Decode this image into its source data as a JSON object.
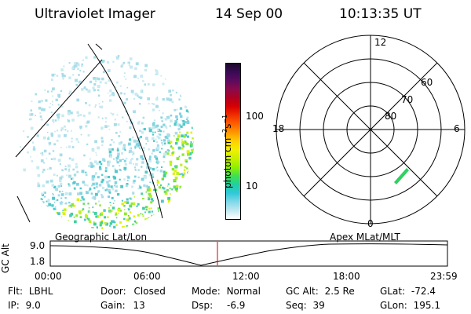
{
  "header": {
    "title": "Ultraviolet Imager",
    "date": "14 Sep 00",
    "time": "10:13:35 UT"
  },
  "colorbar": {
    "unit": "photon cm^-2 s^-1",
    "ticks": [
      "100",
      "10"
    ],
    "colors": [
      "#1a0a2a",
      "#3a0a55",
      "#5e0a5e",
      "#8a0a4a",
      "#b00020",
      "#d80000",
      "#f03000",
      "#ff6000",
      "#ff9800",
      "#ffd000",
      "#f0f000",
      "#c8f000",
      "#90f000",
      "#40e050",
      "#20d0a0",
      "#30c8d8",
      "#80d8e8",
      "#c0e8f0",
      "#ffffff"
    ]
  },
  "polar": {
    "hour_labels": {
      "top": "12",
      "left": "18",
      "right": "6",
      "bottom": "0"
    },
    "lat_labels": [
      "60",
      "70",
      "80"
    ]
  },
  "timeline": {
    "left_title": "Geographic Lat/Lon",
    "right_title": "Apex MLat/MLT",
    "y_label": "GC Alt",
    "y_ticks": [
      "9.0",
      "1.8"
    ],
    "x_ticks": [
      "00:00",
      "06:00",
      "12:00",
      "18:00",
      "23:59"
    ]
  },
  "info": {
    "col1": [
      {
        "k": "Flt:",
        "v": "LBHL"
      },
      {
        "k": "IP:",
        "v": "9.0"
      }
    ],
    "col2": [
      {
        "k": "Door:",
        "v": "Closed"
      },
      {
        "k": "Gain:",
        "v": "13"
      }
    ],
    "col3": [
      {
        "k": "Mode:",
        "v": "Normal"
      },
      {
        "k": "Dsp:",
        "v": "-6.9"
      }
    ],
    "col4": [
      {
        "k": "GC Alt:",
        "v": "2.5 Re"
      },
      {
        "k": "Seq:",
        "v": "39"
      }
    ],
    "col5": [
      {
        "k": "GLat:",
        "v": "-72.4"
      },
      {
        "k": "GLon:",
        "v": "195.1"
      }
    ]
  }
}
